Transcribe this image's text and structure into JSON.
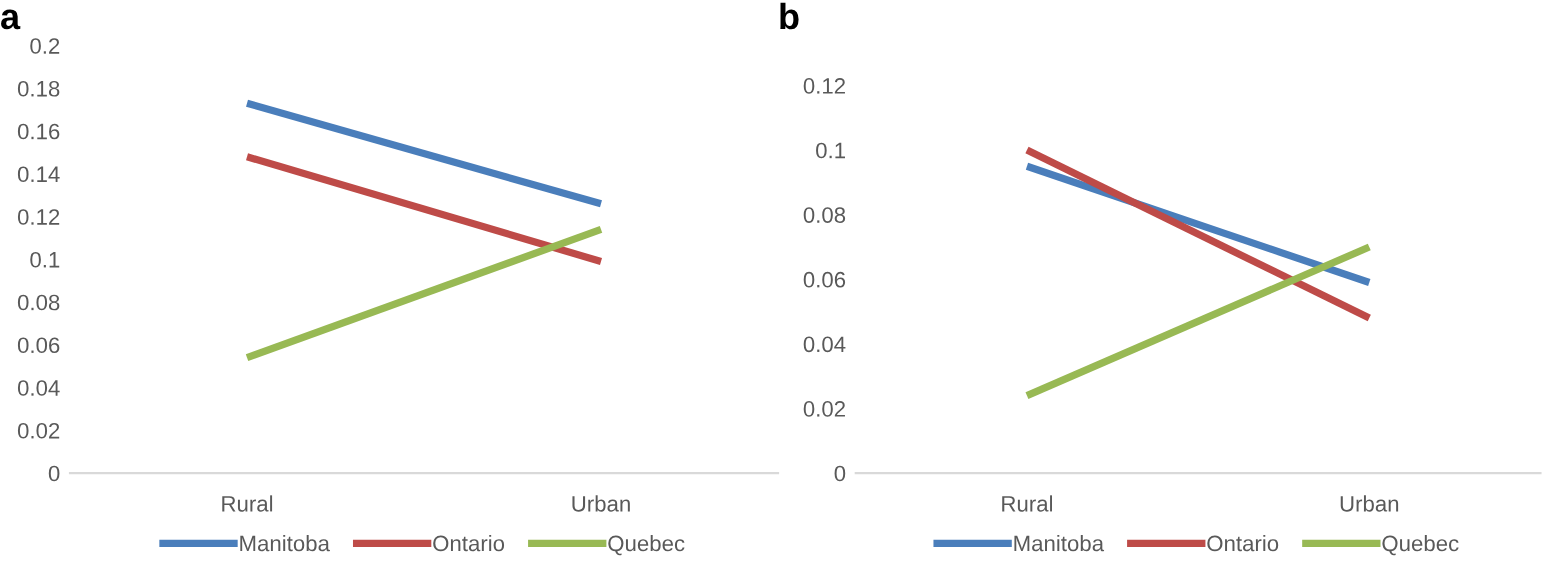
{
  "chart_data": [
    {
      "type": "line",
      "title": "a",
      "categories": [
        "Rural",
        "Urban"
      ],
      "ylim": [
        0,
        0.2
      ],
      "yticks": [
        0,
        0.02,
        0.04,
        0.06,
        0.08,
        0.1,
        0.12,
        0.14,
        0.16,
        0.18,
        0.2
      ],
      "grid": false,
      "legend": "bottom",
      "series": [
        {
          "name": "Manitoba",
          "color": "#4a7ebb",
          "values": [
            0.173,
            0.126
          ]
        },
        {
          "name": "Ontario",
          "color": "#be4b48",
          "values": [
            0.148,
            0.099
          ]
        },
        {
          "name": "Quebec",
          "color": "#98b954",
          "values": [
            0.054,
            0.114
          ]
        }
      ]
    },
    {
      "type": "line",
      "title": "b",
      "categories": [
        "Rural",
        "Urban"
      ],
      "ylim": [
        0,
        0.12
      ],
      "yticks": [
        0,
        0.02,
        0.04,
        0.06,
        0.08,
        0.1,
        0.12
      ],
      "grid": false,
      "legend": "bottom",
      "series": [
        {
          "name": "Manitoba",
          "color": "#4a7ebb",
          "values": [
            0.095,
            0.059
          ]
        },
        {
          "name": "Ontario",
          "color": "#be4b48",
          "values": [
            0.1,
            0.048
          ]
        },
        {
          "name": "Quebec",
          "color": "#98b954",
          "values": [
            0.024,
            0.07
          ]
        }
      ]
    }
  ]
}
